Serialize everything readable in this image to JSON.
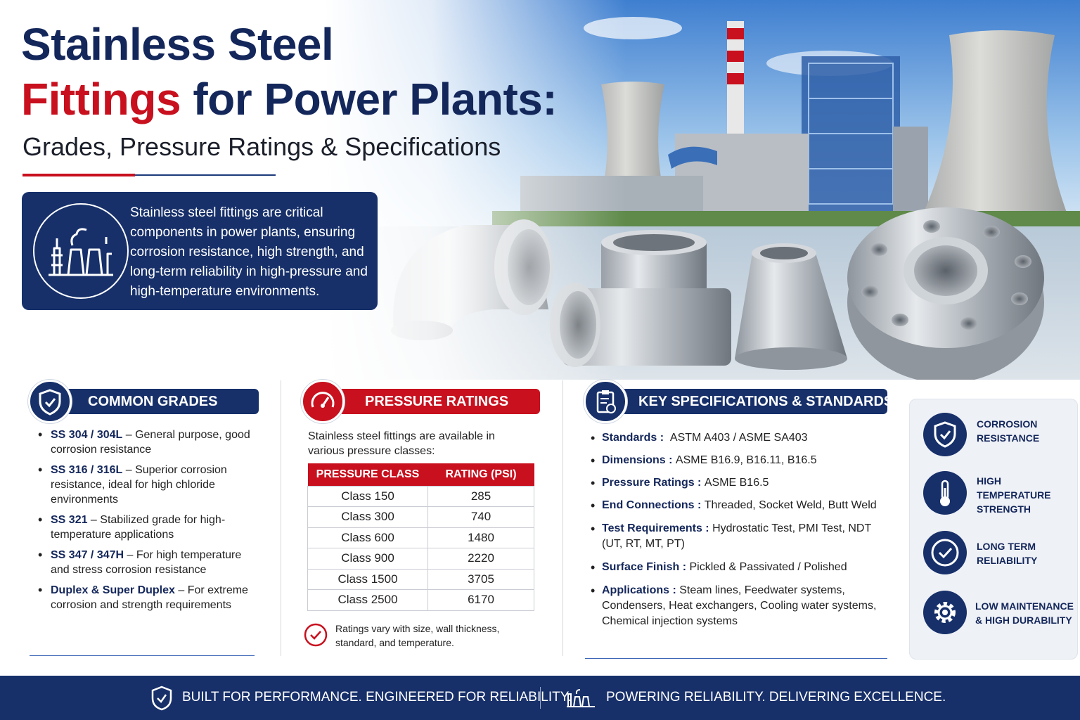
{
  "hero": {
    "title_line1": "Stainless Steel",
    "title_line2_red": "Fittings",
    "title_line2_rest": " for Power Plants:",
    "subtitle": "Grades, Pressure Ratings & Specifications",
    "intro": "Stainless steel fittings are critical components in power plants, ensuring corrosion resistance, high strength, and long-term reliability in high-pressure and high-temperature environments."
  },
  "grades": {
    "heading": "COMMON GRADES",
    "items": [
      {
        "name": "SS 304 / 304L",
        "desc": " – General purpose, good corrosion resistance"
      },
      {
        "name": "SS 316 / 316L",
        "desc": " – Superior corrosion resistance, ideal for high chloride environments"
      },
      {
        "name": "SS 321",
        "desc": " – Stabilized grade for high-temperature applications"
      },
      {
        "name": "SS 347 / 347H",
        "desc": " – For high temperature and stress corrosion resistance"
      },
      {
        "name": "Duplex & Super Duplex",
        "desc": " – For extreme corrosion and strength requirements"
      }
    ]
  },
  "pressure": {
    "heading": "PRESSURE RATINGS",
    "intro": "Stainless steel fittings are available in various pressure classes:",
    "col1": "PRESSURE CLASS",
    "col2": "RATING (PSI)",
    "rows": [
      {
        "cls": "Class 150",
        "psi": "285"
      },
      {
        "cls": "Class 300",
        "psi": "740"
      },
      {
        "cls": "Class 600",
        "psi": "1480"
      },
      {
        "cls": "Class 900",
        "psi": "2220"
      },
      {
        "cls": "Class 1500",
        "psi": "3705"
      },
      {
        "cls": "Class 2500",
        "psi": "6170"
      }
    ],
    "note": "Ratings vary with size, wall thickness, standard, and temperature."
  },
  "specs": {
    "heading": "KEY SPECIFICATIONS & STANDARDS",
    "items": [
      {
        "label": "Standards :",
        "value": "ASTM A403 / ASME SA403"
      },
      {
        "label": "Dimensions :",
        "value": "ASME B16.9, B16.11, B16.5"
      },
      {
        "label": "Pressure Ratings :",
        "value": "ASME B16.5"
      },
      {
        "label": "End Connections :",
        "value": "Threaded, Socket Weld, Butt Weld"
      },
      {
        "label": "Test Requirements :",
        "value": "Hydrostatic Test, PMI Test, NDT (UT, RT, MT, PT)"
      },
      {
        "label": "Surface Finish :",
        "value": "Pickled & Passivated / Polished"
      },
      {
        "label": "Applications :",
        "value": "Steam lines, Feedwater systems, Condensers, Heat exchangers, Cooling water systems, Chemical injection systems"
      }
    ]
  },
  "features": [
    {
      "label_l1": "CORROSION",
      "label_l2": "RESISTANCE",
      "label_l3": "",
      "icon": "shield-icon"
    },
    {
      "label_l1": "HIGH",
      "label_l2": "TEMPERATURE",
      "label_l3": "STRENGTH",
      "icon": "thermometer-icon"
    },
    {
      "label_l1": "LONG TERM",
      "label_l2": "RELIABILITY",
      "label_l3": "",
      "icon": "check-circle-icon"
    },
    {
      "label_l1": "LOW MAINTENANCE",
      "label_l2": "& HIGH DURABILITY",
      "label_l3": "",
      "icon": "gear-icon"
    }
  ],
  "footer": {
    "left": "BUILT FOR PERFORMANCE. ENGINEERED FOR RELIABILITY.",
    "right": "POWERING RELIABILITY. DELIVERING EXCELLENCE."
  },
  "colors": {
    "navy": "#17306a",
    "red": "#c8101e",
    "title_navy": "#14275b"
  }
}
